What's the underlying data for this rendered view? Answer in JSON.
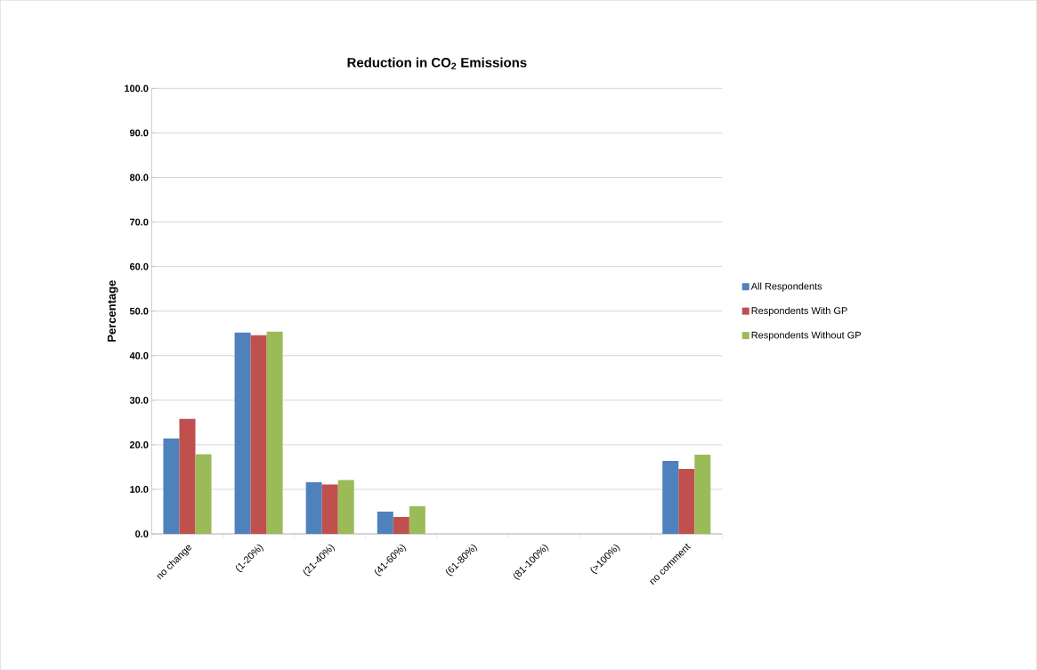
{
  "chart_data": {
    "type": "bar",
    "title": "Reduction in CO$_{2}$ Emissions",
    "ylabel": "Percentage",
    "categories": [
      "no change",
      "(1-20%)",
      "(21-40%)",
      "(41-60%)",
      "(61-80%)",
      "(81-100%)",
      "(>100%)",
      "no comment"
    ],
    "series": [
      {
        "name": "All Respondents",
        "color": "#4f81bd",
        "values": [
          21.4,
          45.2,
          11.6,
          5.0,
          0,
          0,
          0,
          16.4
        ]
      },
      {
        "name": "Respondents With GP",
        "color": "#c0504d",
        "values": [
          25.8,
          44.6,
          11.1,
          3.8,
          0,
          0,
          0,
          14.6
        ]
      },
      {
        "name": "Respondents Without GP",
        "color": "#9bbb59",
        "values": [
          17.9,
          45.4,
          12.1,
          6.2,
          0,
          0,
          0,
          17.8
        ]
      }
    ],
    "ylim": [
      0,
      100
    ],
    "yticks": [
      {
        "value": 0,
        "label": "0.0"
      },
      {
        "value": 10,
        "label": "10.0"
      },
      {
        "value": 20,
        "label": "20.0"
      },
      {
        "value": 30,
        "label": "30.0"
      },
      {
        "value": 40,
        "label": "40.0"
      },
      {
        "value": 50,
        "label": "50.0"
      },
      {
        "value": 60,
        "label": "60.0"
      },
      {
        "value": 70,
        "label": "70.0"
      },
      {
        "value": 80,
        "label": "80.0"
      },
      {
        "value": 90,
        "label": "90.0"
      },
      {
        "value": 100,
        "label": "100.0"
      }
    ],
    "grid": "y",
    "legend": "right"
  }
}
